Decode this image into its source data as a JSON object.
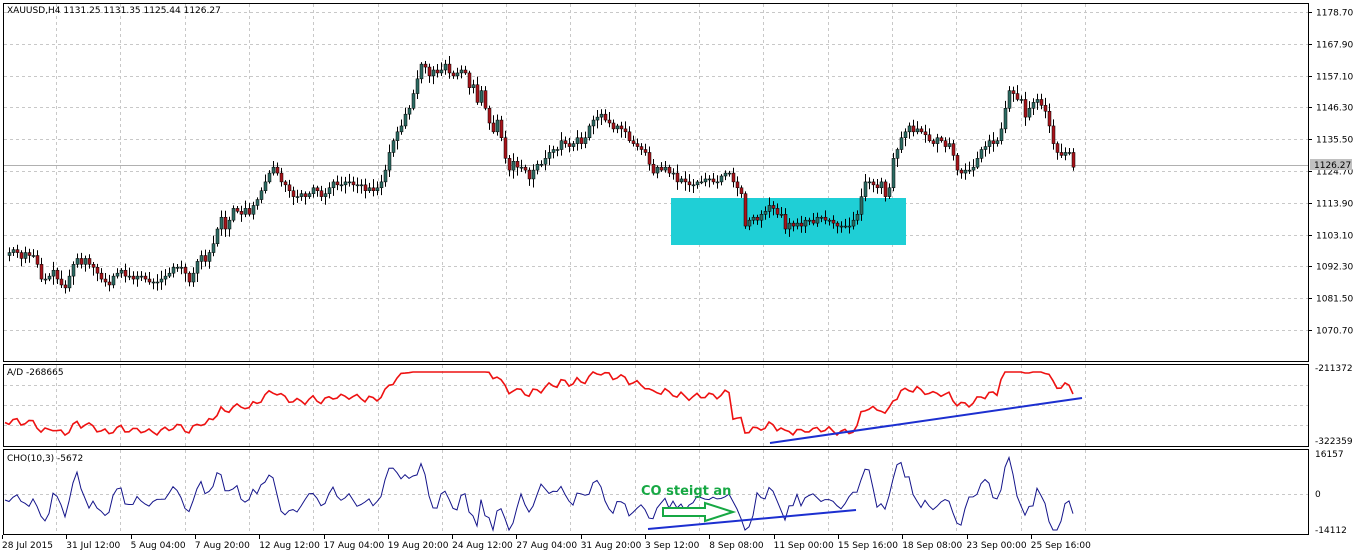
{
  "main": {
    "header": "XAUUSD,H4  1131.25 1131.35 1125.44 1126.27",
    "price_ticks": [
      "1178.70",
      "1167.90",
      "1157.10",
      "1146.30",
      "1135.50",
      "1124.70",
      "1113.90",
      "1103.10",
      "1092.30",
      "1081.50",
      "1070.70"
    ],
    "current_price": "1126.27",
    "bull_color": "#2c6b62",
    "bear_color": "#a8141a",
    "box_color": "#1fcfd6"
  },
  "ad": {
    "label": "A/D -268665",
    "ticks": [
      "-211372",
      "-322359"
    ],
    "line_color": "#ee1111",
    "trend_color": "#1c2fd0"
  },
  "cho": {
    "label": "CHO(10,3) -5672",
    "ticks": [
      "16157",
      "0",
      "-14112"
    ],
    "annotation": "CO steigt an",
    "line_color": "#14148a",
    "annotation_color": "#17a844"
  },
  "time_axis": [
    "28 Jul 2015",
    "31 Jul 12:00",
    "5 Aug 04:00",
    "7 Aug 20:00",
    "12 Aug 12:00",
    "17 Aug 04:00",
    "19 Aug 20:00",
    "24 Aug 12:00",
    "27 Aug 04:00",
    "31 Aug 20:00",
    "3 Sep 12:00",
    "8 Sep 08:00",
    "11 Sep 00:00",
    "15 Sep 16:00",
    "18 Sep 08:00",
    "23 Sep 00:00",
    "25 Sep 16:00"
  ],
  "chart_data": {
    "type": "candlestick",
    "symbol": "XAUUSD",
    "timeframe": "H4",
    "ylim": [
      1066,
      1180
    ],
    "close_path": [
      [
        0,
        1096
      ],
      [
        4,
        1097
      ],
      [
        8,
        1098
      ],
      [
        12,
        1097
      ],
      [
        16,
        1095
      ],
      [
        20,
        1097
      ],
      [
        24,
        1096
      ],
      [
        28,
        1096
      ],
      [
        32,
        1093
      ],
      [
        36,
        1088
      ],
      [
        40,
        1088
      ],
      [
        44,
        1089
      ],
      [
        48,
        1091
      ],
      [
        52,
        1088
      ],
      [
        56,
        1086
      ],
      [
        60,
        1085
      ],
      [
        64,
        1089
      ],
      [
        68,
        1093
      ],
      [
        72,
        1095
      ],
      [
        76,
        1093
      ],
      [
        80,
        1095
      ],
      [
        84,
        1093
      ],
      [
        88,
        1092
      ],
      [
        92,
        1090
      ],
      [
        96,
        1088
      ],
      [
        100,
        1087
      ],
      [
        104,
        1086
      ],
      [
        108,
        1089
      ],
      [
        112,
        1090
      ],
      [
        116,
        1091
      ],
      [
        120,
        1089
      ],
      [
        124,
        1089
      ],
      [
        128,
        1088
      ],
      [
        132,
        1089
      ],
      [
        136,
        1089
      ],
      [
        140,
        1088
      ],
      [
        144,
        1087
      ],
      [
        148,
        1087
      ],
      [
        152,
        1087
      ],
      [
        156,
        1088
      ],
      [
        160,
        1089
      ],
      [
        164,
        1090
      ],
      [
        168,
        1092
      ],
      [
        172,
        1092
      ],
      [
        176,
        1092
      ],
      [
        180,
        1090
      ],
      [
        184,
        1087
      ],
      [
        188,
        1090
      ],
      [
        192,
        1094
      ],
      [
        196,
        1096
      ],
      [
        200,
        1094
      ],
      [
        204,
        1097
      ],
      [
        208,
        1100
      ],
      [
        212,
        1105
      ],
      [
        216,
        1109
      ],
      [
        220,
        1105
      ],
      [
        224,
        1108
      ],
      [
        228,
        1112
      ],
      [
        232,
        1111
      ],
      [
        236,
        1110
      ],
      [
        240,
        1112
      ],
      [
        244,
        1110
      ],
      [
        248,
        1113
      ],
      [
        252,
        1115
      ],
      [
        256,
        1118
      ],
      [
        260,
        1121
      ],
      [
        264,
        1124
      ],
      [
        268,
        1126
      ],
      [
        272,
        1124
      ],
      [
        276,
        1121
      ],
      [
        280,
        1120
      ],
      [
        284,
        1118
      ],
      [
        288,
        1116
      ],
      [
        292,
        1116
      ],
      [
        296,
        1117
      ],
      [
        300,
        1116
      ],
      [
        304,
        1117
      ],
      [
        308,
        1119
      ],
      [
        312,
        1118
      ],
      [
        316,
        1116
      ],
      [
        320,
        1117
      ],
      [
        324,
        1119
      ],
      [
        328,
        1121
      ],
      [
        332,
        1120
      ],
      [
        336,
        1120
      ],
      [
        340,
        1121
      ],
      [
        344,
        1121
      ],
      [
        348,
        1120
      ],
      [
        352,
        1120
      ],
      [
        356,
        1120
      ],
      [
        360,
        1118
      ],
      [
        364,
        1119
      ],
      [
        368,
        1118
      ],
      [
        372,
        1119
      ],
      [
        376,
        1121
      ],
      [
        380,
        1125
      ],
      [
        384,
        1131
      ],
      [
        388,
        1135
      ],
      [
        392,
        1138
      ],
      [
        396,
        1140
      ],
      [
        400,
        1144
      ],
      [
        404,
        1146
      ],
      [
        408,
        1151
      ],
      [
        412,
        1156
      ],
      [
        416,
        1161
      ],
      [
        420,
        1160
      ],
      [
        424,
        1157
      ],
      [
        428,
        1159
      ],
      [
        432,
        1158
      ],
      [
        436,
        1159
      ],
      [
        440,
        1161
      ],
      [
        444,
        1158
      ],
      [
        448,
        1157
      ],
      [
        452,
        1158
      ],
      [
        456,
        1159
      ],
      [
        460,
        1158
      ],
      [
        464,
        1153
      ],
      [
        468,
        1154
      ],
      [
        472,
        1148
      ],
      [
        476,
        1152
      ],
      [
        480,
        1146
      ],
      [
        484,
        1141
      ],
      [
        488,
        1138
      ],
      [
        492,
        1142
      ],
      [
        496,
        1136
      ],
      [
        500,
        1129
      ],
      [
        504,
        1125
      ],
      [
        508,
        1128
      ],
      [
        512,
        1126
      ],
      [
        516,
        1126
      ],
      [
        520,
        1125
      ],
      [
        524,
        1122
      ],
      [
        528,
        1125
      ],
      [
        532,
        1127
      ],
      [
        536,
        1127
      ],
      [
        540,
        1129
      ],
      [
        544,
        1131
      ],
      [
        548,
        1132
      ],
      [
        552,
        1132
      ],
      [
        556,
        1135
      ],
      [
        560,
        1134
      ],
      [
        564,
        1133
      ],
      [
        568,
        1134
      ],
      [
        572,
        1136
      ],
      [
        576,
        1134
      ],
      [
        580,
        1136
      ],
      [
        584,
        1140
      ],
      [
        588,
        1142
      ],
      [
        592,
        1143
      ],
      [
        596,
        1144
      ],
      [
        600,
        1142
      ],
      [
        604,
        1141
      ],
      [
        608,
        1139
      ],
      [
        612,
        1140
      ],
      [
        616,
        1139
      ],
      [
        620,
        1138
      ],
      [
        624,
        1135
      ],
      [
        628,
        1134
      ],
      [
        632,
        1133
      ],
      [
        636,
        1132
      ],
      [
        640,
        1131
      ],
      [
        644,
        1127
      ],
      [
        648,
        1124
      ],
      [
        652,
        1126
      ],
      [
        656,
        1125
      ],
      [
        660,
        1126
      ],
      [
        664,
        1124
      ],
      [
        668,
        1124
      ],
      [
        672,
        1121
      ],
      [
        676,
        1122
      ],
      [
        680,
        1121
      ],
      [
        684,
        1120
      ],
      [
        688,
        1120
      ],
      [
        692,
        1121
      ],
      [
        696,
        1121
      ],
      [
        700,
        1122
      ],
      [
        704,
        1122
      ],
      [
        708,
        1121
      ],
      [
        712,
        1121
      ],
      [
        716,
        1123
      ],
      [
        720,
        1124
      ],
      [
        724,
        1124
      ],
      [
        728,
        1121
      ],
      [
        732,
        1119
      ],
      [
        736,
        1117
      ],
      [
        740,
        1106
      ],
      [
        744,
        1108
      ],
      [
        748,
        1109
      ],
      [
        752,
        1108
      ],
      [
        756,
        1110
      ],
      [
        760,
        1111
      ],
      [
        764,
        1113
      ],
      [
        768,
        1112
      ],
      [
        772,
        1110
      ],
      [
        776,
        1110
      ],
      [
        780,
        1105
      ],
      [
        784,
        1107
      ],
      [
        788,
        1106
      ],
      [
        792,
        1107
      ],
      [
        796,
        1106
      ],
      [
        800,
        1108
      ],
      [
        804,
        1108
      ],
      [
        808,
        1107
      ],
      [
        812,
        1109
      ],
      [
        816,
        1109
      ],
      [
        820,
        1108
      ],
      [
        824,
        1108
      ],
      [
        828,
        1107
      ],
      [
        832,
        1106
      ],
      [
        836,
        1106
      ],
      [
        840,
        1106
      ],
      [
        844,
        1106
      ],
      [
        848,
        1108
      ],
      [
        852,
        1110
      ],
      [
        856,
        1116
      ],
      [
        860,
        1121
      ],
      [
        864,
        1121
      ],
      [
        868,
        1120
      ],
      [
        872,
        1119
      ],
      [
        876,
        1121
      ],
      [
        880,
        1116
      ],
      [
        884,
        1119
      ],
      [
        888,
        1129
      ],
      [
        892,
        1132
      ],
      [
        896,
        1136
      ],
      [
        900,
        1138
      ],
      [
        904,
        1140
      ],
      [
        908,
        1138
      ],
      [
        912,
        1139
      ],
      [
        916,
        1138
      ],
      [
        920,
        1137
      ],
      [
        924,
        1135
      ],
      [
        928,
        1134
      ],
      [
        932,
        1136
      ],
      [
        936,
        1135
      ],
      [
        940,
        1133
      ],
      [
        944,
        1134
      ],
      [
        948,
        1130
      ],
      [
        952,
        1125
      ],
      [
        956,
        1124
      ],
      [
        960,
        1125
      ],
      [
        964,
        1125
      ],
      [
        968,
        1126
      ],
      [
        972,
        1129
      ],
      [
        976,
        1132
      ],
      [
        980,
        1133
      ],
      [
        984,
        1135
      ],
      [
        988,
        1134
      ],
      [
        992,
        1135
      ],
      [
        996,
        1139
      ],
      [
        1000,
        1146
      ],
      [
        1004,
        1152
      ],
      [
        1008,
        1151
      ],
      [
        1012,
        1149
      ],
      [
        1016,
        1149
      ],
      [
        1020,
        1143
      ],
      [
        1024,
        1146
      ],
      [
        1028,
        1148
      ],
      [
        1032,
        1149
      ],
      [
        1036,
        1147
      ],
      [
        1040,
        1145
      ],
      [
        1044,
        1140
      ],
      [
        1048,
        1134
      ],
      [
        1052,
        1131
      ],
      [
        1056,
        1130
      ],
      [
        1060,
        1131
      ],
      [
        1064,
        1131
      ],
      [
        1068,
        1126
      ]
    ]
  }
}
